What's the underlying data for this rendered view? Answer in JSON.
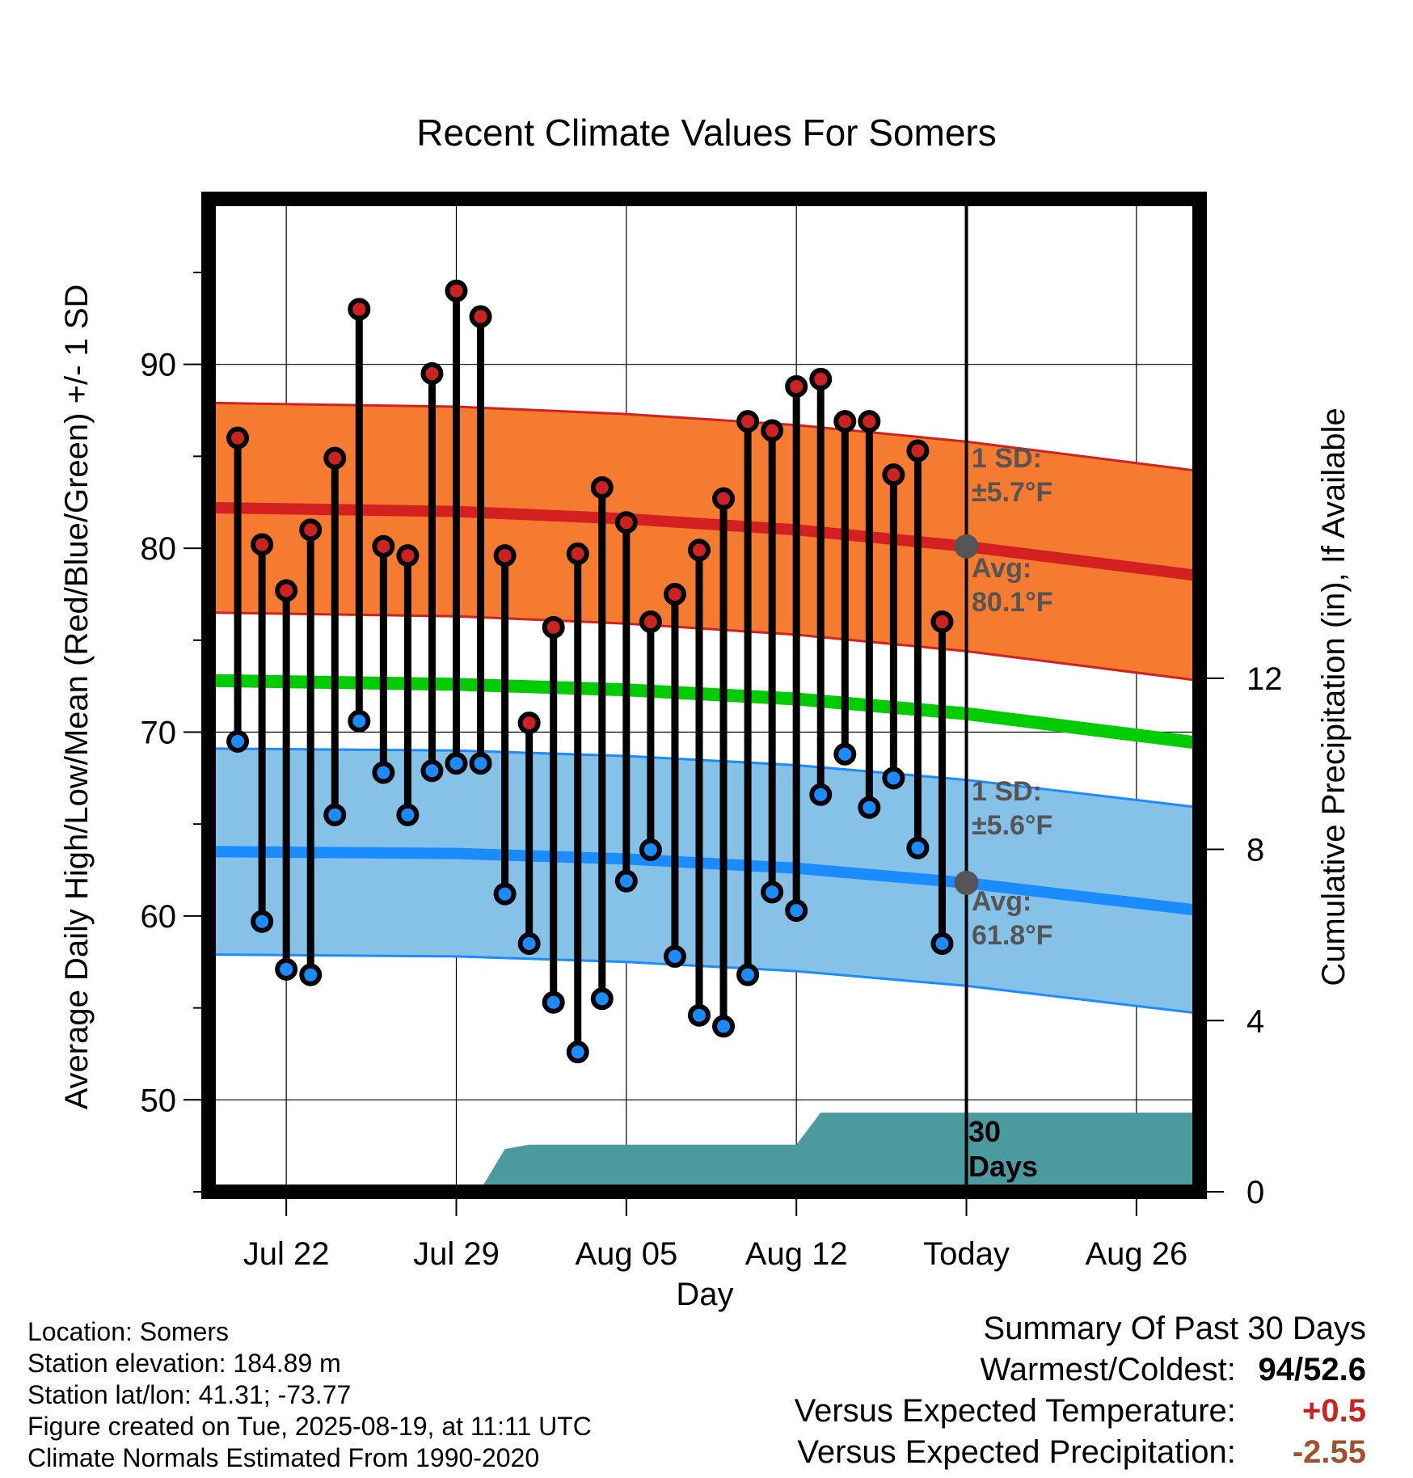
{
  "title": "Recent Climate Values For Somers",
  "y_left_label": "Average Daily High/Low/Mean (Red/Blue/Green) +/- 1 SD",
  "y_right_label": "Cumulative Precipitation (in), If Available",
  "x_label": "Day",
  "annotations": {
    "high_sd_line1": "1 SD:",
    "high_sd_line2": "±5.7°F",
    "high_avg_line1": "Avg:",
    "high_avg_line2": "80.1°F",
    "low_sd_line1": "1 SD:",
    "low_sd_line2": "±5.6°F",
    "low_avg_line1": "Avg:",
    "low_avg_line2": "61.8°F",
    "window_line1": "30",
    "window_line2": "Days"
  },
  "footer": {
    "location": "Location: Somers",
    "elevation": "Station elevation: 184.89 m",
    "latlon": "Station lat/lon: 41.31; -73.77",
    "created": "Figure created on Tue, 2025-08-19, at 11:11 UTC",
    "normals": "Climate Normals Estimated From 1990-2020"
  },
  "summary": {
    "heading": "Summary Of Past 30 Days",
    "warm_cold_label": "Warmest/Coldest:",
    "warm_cold_value": "94/52.6",
    "temp_label": "Versus Expected Temperature:",
    "temp_value": "+0.5",
    "precip_label": "Versus Expected Precipitation:",
    "precip_value": "-2.55"
  },
  "colors": {
    "high_band": "#f47b30",
    "high_line": "#d42020",
    "low_band": "#86c1e8",
    "low_line": "#1a8cff",
    "mean_line": "#00cc00",
    "precip_fill": "#4a9aa0",
    "high_dot": "#cc2222",
    "low_dot": "#1a8cff"
  },
  "chart_data": {
    "type": "line",
    "x_tick_labels": [
      "Jul 22",
      "Jul 29",
      "Aug 05",
      "Aug 12",
      "Today",
      "Aug 26"
    ],
    "x_tick_days": [
      -28,
      -21,
      -14,
      -7,
      0,
      7
    ],
    "x_range_days": [
      -31.2,
      9.6
    ],
    "ylim_left": [
      45,
      99
    ],
    "y_left_ticks": [
      50,
      60,
      70,
      80,
      90
    ],
    "ylim_right": [
      0,
      23.2
    ],
    "y_right_ticks": [
      0,
      4,
      8,
      12
    ],
    "daily": [
      {
        "day": -30,
        "high": 86.0,
        "low": 69.5
      },
      {
        "day": -29,
        "high": 80.2,
        "low": 59.7
      },
      {
        "day": -28,
        "high": 77.7,
        "low": 57.1
      },
      {
        "day": -27,
        "high": 81.0,
        "low": 56.8
      },
      {
        "day": -26,
        "high": 84.9,
        "low": 65.5
      },
      {
        "day": -25,
        "high": 93.0,
        "low": 70.6
      },
      {
        "day": -24,
        "high": 80.1,
        "low": 67.8
      },
      {
        "day": -23,
        "high": 79.6,
        "low": 65.5
      },
      {
        "day": -22,
        "high": 89.5,
        "low": 67.9
      },
      {
        "day": -21,
        "high": 94.0,
        "low": 68.3
      },
      {
        "day": -20,
        "high": 92.6,
        "low": 68.3
      },
      {
        "day": -19,
        "high": 79.6,
        "low": 61.2
      },
      {
        "day": -18,
        "high": 70.5,
        "low": 58.5
      },
      {
        "day": -17,
        "high": 75.7,
        "low": 55.3
      },
      {
        "day": -16,
        "high": 79.7,
        "low": 52.6
      },
      {
        "day": -15,
        "high": 83.3,
        "low": 55.5
      },
      {
        "day": -14,
        "high": 81.4,
        "low": 61.9
      },
      {
        "day": -13,
        "high": 76.0,
        "low": 63.6
      },
      {
        "day": -12,
        "high": 77.5,
        "low": 57.8
      },
      {
        "day": -11,
        "high": 79.9,
        "low": 54.6
      },
      {
        "day": -10,
        "high": 82.7,
        "low": 54.0
      },
      {
        "day": -9,
        "high": 86.9,
        "low": 56.8
      },
      {
        "day": -8,
        "high": 86.4,
        "low": 61.3
      },
      {
        "day": -7,
        "high": 88.8,
        "low": 60.3
      },
      {
        "day": -6,
        "high": 89.2,
        "low": 66.6
      },
      {
        "day": -5,
        "high": 86.9,
        "low": 68.8
      },
      {
        "day": -4,
        "high": 86.9,
        "low": 65.9
      },
      {
        "day": -3,
        "high": 84.0,
        "low": 67.5
      },
      {
        "day": -2,
        "high": 85.3,
        "low": 63.7
      },
      {
        "day": -1,
        "high": 76.0,
        "low": 58.5
      }
    ],
    "normal_high": [
      {
        "day": -31,
        "value": 82.2
      },
      {
        "day": -21,
        "value": 82.0
      },
      {
        "day": -14,
        "value": 81.6
      },
      {
        "day": -7,
        "value": 81.0
      },
      {
        "day": 0,
        "value": 80.1
      },
      {
        "day": 9.6,
        "value": 78.5
      }
    ],
    "normal_high_sd": 5.7,
    "normal_low": [
      {
        "day": -31,
        "value": 63.5
      },
      {
        "day": -21,
        "value": 63.4
      },
      {
        "day": -14,
        "value": 63.1
      },
      {
        "day": -7,
        "value": 62.6
      },
      {
        "day": 0,
        "value": 61.8
      },
      {
        "day": 9.6,
        "value": 60.3
      }
    ],
    "normal_low_sd": 5.6,
    "normal_mean": [
      {
        "day": -31,
        "value": 72.8
      },
      {
        "day": -21,
        "value": 72.6
      },
      {
        "day": -14,
        "value": 72.3
      },
      {
        "day": -7,
        "value": 71.8
      },
      {
        "day": 0,
        "value": 71.0
      },
      {
        "day": 9.6,
        "value": 69.4
      }
    ],
    "precip_cumulative": [
      {
        "day": -31.2,
        "value": 0
      },
      {
        "day": -24.5,
        "value": 0
      },
      {
        "day": -23.5,
        "value": 0.05
      },
      {
        "day": -21.0,
        "value": 0.05
      },
      {
        "day": -20.0,
        "value": 0.05
      },
      {
        "day": -19.0,
        "value": 1.0
      },
      {
        "day": -18.0,
        "value": 1.1
      },
      {
        "day": -7.0,
        "value": 1.1
      },
      {
        "day": -6.0,
        "value": 1.85
      },
      {
        "day": 9.6,
        "value": 1.85
      }
    ]
  }
}
